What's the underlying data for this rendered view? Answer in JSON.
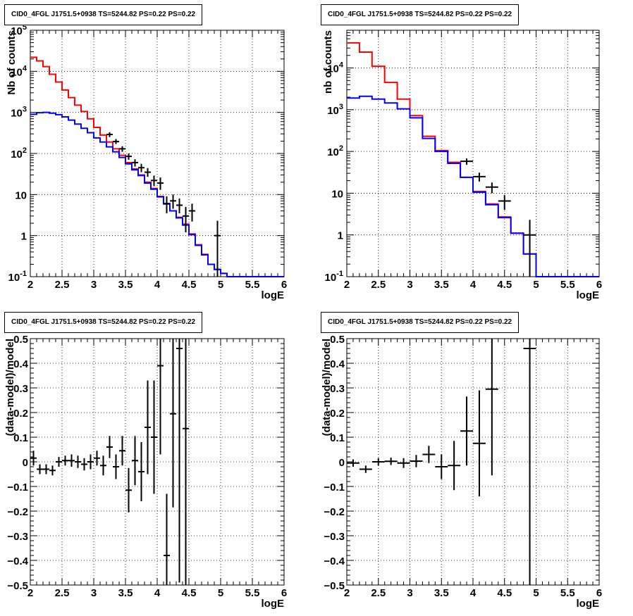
{
  "colors": {
    "model_red": "#ff0000",
    "model_blue": "#0000ff",
    "data": "#000000"
  },
  "chart_data": [
    {
      "type": "line",
      "title": "CID0_4FGL J1751.5+0938 TS=5244.82 PS=0.22 PS=0.22",
      "xlabel": "logE",
      "ylabel": "Nb of counts",
      "log_y": true,
      "xlim": [
        2,
        6
      ],
      "ylim": [
        0.1,
        100000
      ],
      "x_ticks": [
        "2",
        "2.5",
        "3",
        "3.5",
        "4",
        "4.5",
        "5",
        "5.5",
        "6"
      ],
      "y_ticks": [
        "10^-1",
        "1",
        "10",
        "10^2",
        "10^3",
        "10^4",
        "10^5"
      ],
      "grid": true,
      "bin_edges": [
        2.0,
        2.1,
        2.2,
        2.3,
        2.4,
        2.5,
        2.6,
        2.7,
        2.8,
        2.9,
        3.0,
        3.1,
        3.2,
        3.3,
        3.4,
        3.5,
        3.6,
        3.7,
        3.8,
        3.9,
        4.0,
        4.1,
        4.2,
        4.3,
        4.4,
        4.5,
        4.6,
        4.7,
        4.8,
        4.9,
        5.0,
        5.1,
        5.2,
        5.3,
        5.4,
        5.5,
        5.6,
        5.7,
        5.8,
        5.9,
        6.0
      ],
      "series": [
        {
          "color": "#ff0000",
          "values": [
            22000,
            18000,
            13000,
            8500,
            5500,
            3500,
            2300,
            1500,
            1050,
            700,
            430,
            280,
            190,
            130,
            90,
            60,
            42,
            30,
            20,
            14,
            9,
            6,
            4,
            2.8,
            1.9,
            1.1,
            0.6,
            0.35,
            0.2,
            0.15,
            0.12,
            0.1,
            0.1,
            0.1,
            0.1,
            0.1,
            0.1,
            0.1,
            0.1,
            0.1
          ]
        },
        {
          "color": "#0000ff",
          "values": [
            900,
            980,
            1000,
            960,
            880,
            780,
            650,
            520,
            410,
            320,
            240,
            190,
            145,
            110,
            80,
            56,
            40,
            29,
            19,
            13.5,
            8.8,
            5.9,
            4,
            2.7,
            1.8,
            1.05,
            0.58,
            0.34,
            0.2,
            0.15,
            0.12,
            0.1,
            0.1,
            0.1,
            0.1,
            0.1,
            0.1,
            0.1,
            0.1,
            0.1
          ]
        }
      ],
      "data_points": [
        {
          "x": 3.25,
          "y": 290,
          "ylo": 250,
          "yhi": 330
        },
        {
          "x": 3.35,
          "y": 195,
          "ylo": 170,
          "yhi": 225
        },
        {
          "x": 3.45,
          "y": 130,
          "ylo": 110,
          "yhi": 150
        },
        {
          "x": 3.55,
          "y": 85,
          "ylo": 70,
          "yhi": 100
        },
        {
          "x": 3.65,
          "y": 60,
          "ylo": 48,
          "yhi": 72
        },
        {
          "x": 3.75,
          "y": 45,
          "ylo": 35,
          "yhi": 56
        },
        {
          "x": 3.85,
          "y": 35,
          "ylo": 27,
          "yhi": 44
        },
        {
          "x": 3.95,
          "y": 22,
          "ylo": 16,
          "yhi": 29
        },
        {
          "x": 4.05,
          "y": 19,
          "ylo": 13,
          "yhi": 26
        },
        {
          "x": 4.15,
          "y": 6,
          "ylo": 3.5,
          "yhi": 9
        },
        {
          "x": 4.25,
          "y": 7,
          "ylo": 4.5,
          "yhi": 10
        },
        {
          "x": 4.35,
          "y": 5.5,
          "ylo": 3.5,
          "yhi": 8
        },
        {
          "x": 4.45,
          "y": 3,
          "ylo": 1.2,
          "yhi": 5
        },
        {
          "x": 4.55,
          "y": 4,
          "ylo": 2.2,
          "yhi": 6
        },
        {
          "x": 4.95,
          "y": 1,
          "ylo": 0.1,
          "yhi": 2.3
        }
      ]
    },
    {
      "type": "line",
      "title": "CID0_4FGL J1751.5+0938 TS=5244.82 PS=0.22 PS=0.22",
      "xlabel": "logE",
      "ylabel": "nb of counts",
      "log_y": true,
      "xlim": [
        2,
        6
      ],
      "ylim": [
        0.1,
        80000
      ],
      "x_ticks": [
        "2",
        "2.5",
        "3",
        "3.5",
        "4",
        "4.5",
        "5",
        "5.5",
        "6"
      ],
      "y_ticks": [
        "10^-1",
        "1",
        "10",
        "10^2",
        "10^3",
        "10^4"
      ],
      "grid": true,
      "bin_edges": [
        2.0,
        2.2,
        2.4,
        2.6,
        2.8,
        3.0,
        3.2,
        3.4,
        3.6,
        3.8,
        4.0,
        4.2,
        4.4,
        4.6,
        4.8,
        5.0,
        5.2,
        5.4,
        5.6,
        5.8,
        6.0
      ],
      "series": [
        {
          "color": "#ff0000",
          "values": [
            40000,
            24000,
            11000,
            4500,
            1800,
            720,
            230,
            105,
            55,
            24,
            11,
            5.5,
            2.7,
            1.1,
            0.35,
            0.1,
            0.1,
            0.1,
            0.1,
            0.1
          ]
        },
        {
          "color": "#0000ff",
          "values": [
            1900,
            2100,
            1800,
            1450,
            1050,
            640,
            205,
            100,
            52,
            24,
            10.5,
            5.3,
            2.6,
            1.1,
            0.35,
            0.1,
            0.1,
            0.1,
            0.1,
            0.1
          ]
        }
      ],
      "data_points": [
        {
          "x": 3.9,
          "y": 58,
          "ylo": 48,
          "yhi": 68
        },
        {
          "x": 4.1,
          "y": 25,
          "ylo": 19,
          "yhi": 31
        },
        {
          "x": 4.3,
          "y": 14,
          "ylo": 10,
          "yhi": 18
        },
        {
          "x": 4.5,
          "y": 6.5,
          "ylo": 4,
          "yhi": 9
        },
        {
          "x": 4.9,
          "y": 1,
          "ylo": 0.1,
          "yhi": 2.3
        }
      ]
    },
    {
      "type": "scatter",
      "title": "CID0_4FGL J1751.5+0938 TS=5244.82 PS=0.22 PS=0.22",
      "xlabel": "logE",
      "ylabel": "(data-model)/model",
      "xlim": [
        2,
        6
      ],
      "ylim": [
        -0.5,
        0.5
      ],
      "x_ticks": [
        "2",
        "2.5",
        "3",
        "3.5",
        "4",
        "4.5",
        "5",
        "5.5",
        "6"
      ],
      "y_ticks": [
        "−0.5",
        "−0.4",
        "−0.3",
        "−0.2",
        "−0.1",
        "0",
        "0.1",
        "0.2",
        "0.3",
        "0.4",
        "0.5"
      ],
      "grid": true,
      "bin_width": 0.1,
      "data_points": [
        {
          "x": 2.05,
          "y": 0.015,
          "err": 0.03
        },
        {
          "x": 2.15,
          "y": -0.03,
          "err": 0.02
        },
        {
          "x": 2.25,
          "y": -0.03,
          "err": 0.02
        },
        {
          "x": 2.35,
          "y": -0.035,
          "err": 0.02
        },
        {
          "x": 2.45,
          "y": 0.0,
          "err": 0.02
        },
        {
          "x": 2.55,
          "y": 0.005,
          "err": 0.02
        },
        {
          "x": 2.65,
          "y": 0.005,
          "err": 0.025
        },
        {
          "x": 2.75,
          "y": 0.0,
          "err": 0.025
        },
        {
          "x": 2.85,
          "y": -0.01,
          "err": 0.025
        },
        {
          "x": 2.95,
          "y": 0.0,
          "err": 0.03
        },
        {
          "x": 3.05,
          "y": 0.015,
          "err": 0.03
        },
        {
          "x": 3.15,
          "y": -0.015,
          "err": 0.04
        },
        {
          "x": 3.25,
          "y": 0.06,
          "err": 0.045
        },
        {
          "x": 3.35,
          "y": -0.02,
          "err": 0.05
        },
        {
          "x": 3.45,
          "y": 0.045,
          "err": 0.06
        },
        {
          "x": 3.55,
          "y": -0.115,
          "err": 0.09
        },
        {
          "x": 3.65,
          "y": 0.005,
          "err": 0.1
        },
        {
          "x": 3.75,
          "y": -0.04,
          "err": 0.12
        },
        {
          "x": 3.85,
          "y": 0.14,
          "err": 0.19
        },
        {
          "x": 3.95,
          "y": 0.1,
          "err": 0.23
        },
        {
          "x": 4.05,
          "y": 0.39,
          "err": 0.36
        },
        {
          "x": 4.15,
          "y": -0.38,
          "err": 0.25
        },
        {
          "x": 4.25,
          "y": 0.195,
          "err": 0.38
        },
        {
          "x": 4.35,
          "y": 0.46,
          "err": 0.95
        },
        {
          "x": 4.45,
          "y": 0.135,
          "err": 0.95
        }
      ]
    },
    {
      "type": "scatter",
      "title": "CID0_4FGL J1751.5+0938 TS=5244.82 PS=0.22 PS=0.22",
      "xlabel": "logE",
      "ylabel": "(data-model)/model",
      "xlim": [
        2,
        6
      ],
      "ylim": [
        -0.5,
        0.5
      ],
      "x_ticks": [
        "2",
        "2.5",
        "3",
        "3.5",
        "4",
        "4.5",
        "5",
        "5.5",
        "6"
      ],
      "y_ticks": [
        "−0.5",
        "−0.4",
        "−0.3",
        "−0.2",
        "−0.1",
        "0",
        "0.1",
        "0.2",
        "0.3",
        "0.4",
        "0.5"
      ],
      "grid": true,
      "bin_width": 0.2,
      "data_points": [
        {
          "x": 2.1,
          "y": -0.005,
          "err": 0.015
        },
        {
          "x": 2.3,
          "y": -0.03,
          "err": 0.015
        },
        {
          "x": 2.5,
          "y": 0.0,
          "err": 0.015
        },
        {
          "x": 2.7,
          "y": 0.002,
          "err": 0.015
        },
        {
          "x": 2.9,
          "y": -0.005,
          "err": 0.02
        },
        {
          "x": 3.1,
          "y": 0.003,
          "err": 0.025
        },
        {
          "x": 3.3,
          "y": 0.03,
          "err": 0.035
        },
        {
          "x": 3.5,
          "y": -0.02,
          "err": 0.05
        },
        {
          "x": 3.7,
          "y": -0.015,
          "err": 0.1
        },
        {
          "x": 3.9,
          "y": 0.125,
          "err": 0.14
        },
        {
          "x": 4.1,
          "y": 0.075,
          "err": 0.215
        },
        {
          "x": 4.3,
          "y": 0.295,
          "err": 0.35
        },
        {
          "x": 4.9,
          "y": 0.46,
          "err": 1.0
        }
      ]
    }
  ]
}
